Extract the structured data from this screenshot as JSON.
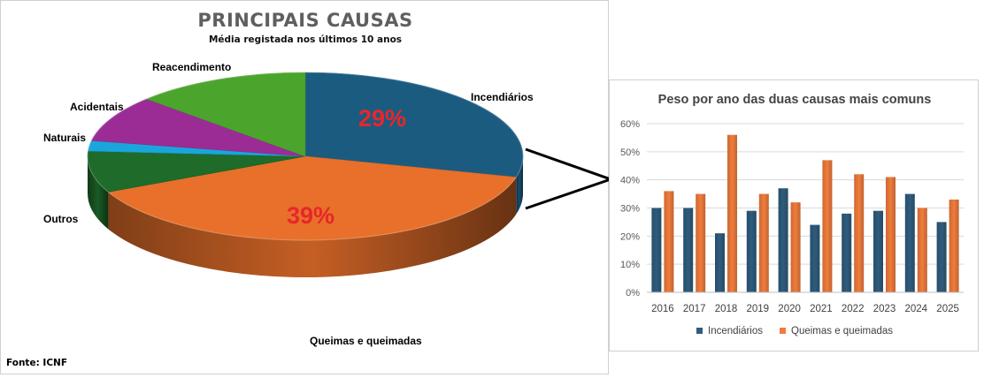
{
  "source_note": "Fonte: ICNF",
  "colors": {
    "incendiarios": "#1b5b80",
    "queimas": "#e8702a",
    "reacendimento": "#4ba52d",
    "acidentais": "#9b2c96",
    "naturais": "#1aa6dd",
    "outros": "#1e6b2a",
    "pct_label": "#e8262a",
    "bar_incendiarios": "#2f5c7d",
    "bar_queimas": "#f07c3c"
  },
  "icons": [
    "arrow-connector-icon"
  ],
  "chart_data": [
    {
      "type": "pie",
      "title": "PRINCIPAIS CAUSAS",
      "subtitle": "Média registada nos últimos 10 anos",
      "slices": [
        {
          "label": "Incendiários",
          "value": 29,
          "value_label": "29%"
        },
        {
          "label": "Queimas e queimadas",
          "value": 39,
          "value_label": "39%"
        },
        {
          "label": "Outros",
          "value": 8,
          "value_label": ""
        },
        {
          "label": "Naturais",
          "value": 2,
          "value_label": ""
        },
        {
          "label": "Acidentais",
          "value": 9,
          "value_label": ""
        },
        {
          "label": "Reacendimento",
          "value": 13,
          "value_label": ""
        }
      ]
    },
    {
      "type": "bar",
      "title": "Peso por ano das duas causas mais comuns",
      "categories": [
        "2016",
        "2017",
        "2018",
        "2019",
        "2020",
        "2021",
        "2022",
        "2023",
        "2024",
        "2025"
      ],
      "series": [
        {
          "name": "Incendiários",
          "values": [
            30,
            30,
            21,
            29,
            37,
            24,
            28,
            29,
            35,
            25
          ]
        },
        {
          "name": "Queimas e queimadas",
          "values": [
            36,
            35,
            56,
            35,
            32,
            47,
            42,
            41,
            30,
            33
          ]
        }
      ],
      "y_ticks": [
        "0%",
        "10%",
        "20%",
        "30%",
        "40%",
        "50%",
        "60%"
      ],
      "ylim": [
        0,
        60
      ],
      "grid": true,
      "legend": "bottom"
    }
  ]
}
